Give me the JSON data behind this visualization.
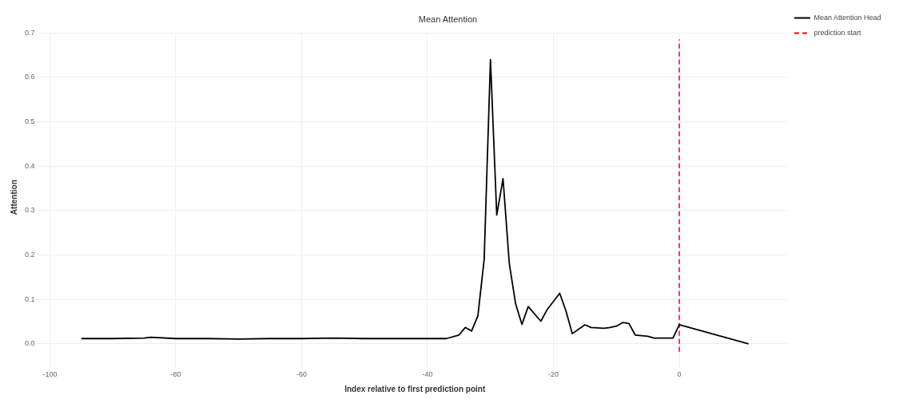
{
  "chart_data": {
    "type": "line",
    "title": "Mean Attention",
    "xlabel": "Index relative to first prediction point",
    "ylabel": "Attention",
    "x": [
      -95,
      -90,
      -85,
      -84,
      -80,
      -75,
      -70,
      -65,
      -60,
      -55,
      -50,
      -45,
      -40,
      -37,
      -35,
      -34,
      -33,
      -32,
      -31,
      -30,
      -29,
      -28,
      -27,
      -26,
      -25,
      -24,
      -22,
      -21,
      -19,
      -18,
      -17,
      -15,
      -14,
      -12,
      -11,
      -10,
      -9,
      -8,
      -7,
      -5,
      -4,
      -1,
      0,
      11
    ],
    "series": [
      {
        "name": "Mean Attention Head",
        "color": "#000000",
        "values": [
          0.012,
          0.012,
          0.013,
          0.015,
          0.012,
          0.012,
          0.011,
          0.012,
          0.012,
          0.013,
          0.012,
          0.012,
          0.012,
          0.012,
          0.02,
          0.037,
          0.029,
          0.063,
          0.19,
          0.64,
          0.29,
          0.372,
          0.18,
          0.09,
          0.044,
          0.084,
          0.051,
          0.077,
          0.114,
          0.074,
          0.023,
          0.043,
          0.037,
          0.035,
          0.037,
          0.04,
          0.048,
          0.046,
          0.02,
          0.017,
          0.013,
          0.013,
          0.043,
          0.0
        ]
      }
    ],
    "xlim": [
      -101,
      17
    ],
    "xticks": [
      -100,
      -80,
      -60,
      -40,
      -20,
      0
    ],
    "ylim": [
      -0.04,
      0.7
    ],
    "yticks": [
      {
        "value": 0,
        "label": "0.0"
      },
      0.1,
      0.2,
      0.3,
      0.4,
      0.5,
      0.6,
      0.7
    ],
    "ref_lines": [
      {
        "axis": "x",
        "value": 0,
        "label": "prediction start",
        "color": "#ff0000",
        "line_style": "dashed"
      }
    ],
    "grid": true,
    "legend": "top right",
    "line_style": "solid",
    "marker": "none"
  }
}
